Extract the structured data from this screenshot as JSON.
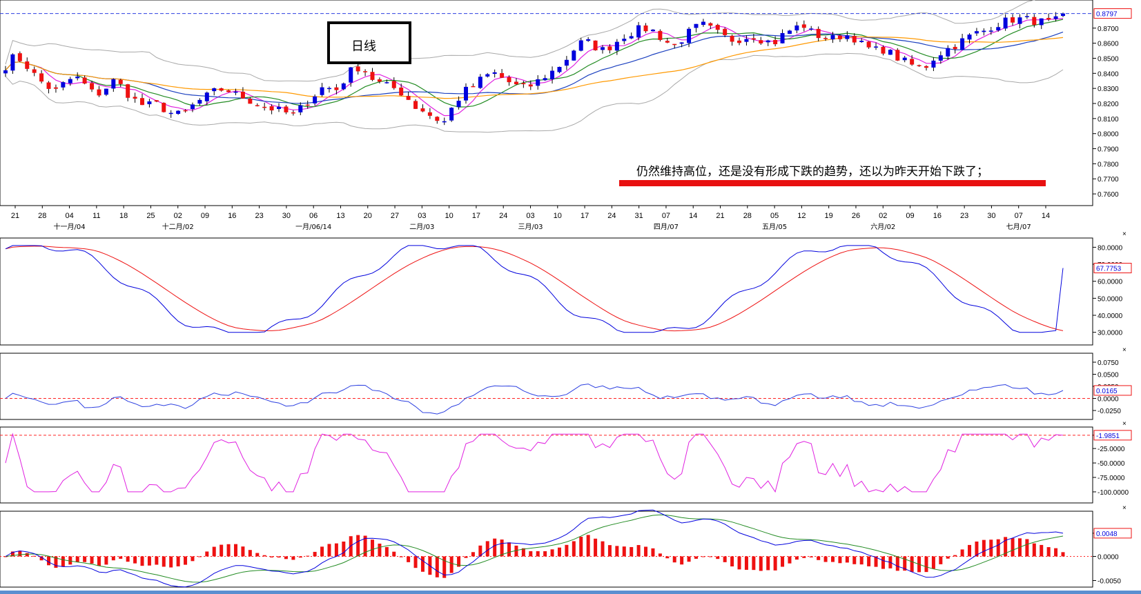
{
  "chart_data": {
    "type": "candlestick",
    "title_box": "日线",
    "annotation": "仍然维持高位，还是没有形成下跌的趋势，还以为昨天开始下跌了；",
    "date_ticks": [
      "21",
      "28",
      "04",
      "11",
      "18",
      "25",
      "02",
      "09",
      "16",
      "23",
      "30",
      "06",
      "13",
      "20",
      "27",
      "03",
      "10",
      "17",
      "24",
      "03",
      "10",
      "17",
      "24",
      "31",
      "07",
      "14",
      "21",
      "28",
      "05",
      "12",
      "19",
      "26",
      "02",
      "09",
      "16",
      "23",
      "30",
      "07",
      "14"
    ],
    "month_labels": [
      {
        "at": 2,
        "text": "十一月/04"
      },
      {
        "at": 6,
        "text": "十二月/02"
      },
      {
        "at": 11,
        "text": "一月/06/14"
      },
      {
        "at": 15,
        "text": "二月/03"
      },
      {
        "at": 19,
        "text": "三月/03"
      },
      {
        "at": 24,
        "text": "四月/07"
      },
      {
        "at": 28,
        "text": "五月/05"
      },
      {
        "at": 32,
        "text": "六月/02"
      },
      {
        "at": 37,
        "text": "七月/07"
      }
    ],
    "price_axis": {
      "ticks": [
        "0.8700",
        "0.8600",
        "0.8500",
        "0.8400",
        "0.8300",
        "0.8200",
        "0.8100",
        "0.8000",
        "0.7900",
        "0.7800",
        "0.7700",
        "0.7600"
      ],
      "range": [
        0.755,
        0.885
      ],
      "last": "0.8797",
      "last_value": 0.8797
    },
    "close_path": [
      0.845,
      0.852,
      0.846,
      0.838,
      0.832,
      0.828,
      0.834,
      0.838,
      0.832,
      0.825,
      0.83,
      0.836,
      0.828,
      0.822,
      0.818,
      0.82,
      0.816,
      0.812,
      0.814,
      0.82,
      0.824,
      0.828,
      0.83,
      0.826,
      0.824,
      0.82,
      0.818,
      0.816,
      0.814,
      0.812,
      0.82,
      0.826,
      0.832,
      0.828,
      0.836,
      0.845,
      0.842,
      0.835,
      0.832,
      0.83,
      0.826,
      0.818,
      0.815,
      0.81,
      0.808,
      0.82,
      0.828,
      0.832,
      0.838,
      0.84,
      0.836,
      0.832,
      0.83,
      0.833,
      0.838,
      0.842,
      0.848,
      0.856,
      0.862,
      0.858,
      0.855,
      0.86,
      0.865,
      0.868,
      0.87,
      0.868,
      0.862,
      0.858,
      0.864,
      0.87,
      0.872,
      0.868,
      0.864,
      0.862,
      0.864,
      0.865,
      0.862,
      0.86,
      0.866,
      0.87,
      0.872,
      0.866,
      0.864,
      0.863,
      0.866,
      0.864,
      0.858,
      0.855,
      0.856,
      0.852,
      0.848,
      0.845,
      0.843,
      0.85,
      0.855,
      0.858,
      0.862,
      0.866,
      0.868,
      0.872,
      0.874,
      0.876,
      0.876,
      0.875,
      0.874,
      0.873,
      0.8797
    ],
    "panels": [
      {
        "name": "kdj",
        "ticks": [
          "80.0000",
          "70.0000",
          "60.0000",
          "50.0000",
          "40.0000",
          "30.0000"
        ],
        "range": [
          25,
          83
        ],
        "last": "67.7753",
        "last_value": 67.7753
      },
      {
        "name": "momentum",
        "ticks": [
          "0.0750",
          "0.0500",
          "0.0250",
          "0.0000",
          "-0.0250"
        ],
        "range": [
          -0.035,
          0.085
        ],
        "last": "0.0165",
        "last_value": 0.0165,
        "ref_value": 0.0
      },
      {
        "name": "williams",
        "ticks": [
          "-1.9851",
          "-25.0000",
          "-50.0000",
          "-75.0000",
          "-100.0000"
        ],
        "range": [
          -112,
          5
        ],
        "last": "-1.9851",
        "last_value": -1.9851
      },
      {
        "name": "macd",
        "ticks": [
          "0.0048",
          "0.0000",
          "-0.0050"
        ],
        "range": [
          -0.0055,
          0.0085
        ],
        "last": "0.0048",
        "last_value": 0.0048
      }
    ],
    "colors": {
      "up": "#0000dd",
      "down": "#ee1111",
      "ma_orange": "#ff9900",
      "ma_blue": "#1a3fbf",
      "ma_green": "#228b22",
      "ma_magenta": "#e020e0",
      "boll": "#a8a8a8",
      "annotation_bar": "#e81010",
      "ref_line_blue": "#2b3fe0",
      "ref_line_red": "#ff2020"
    }
  }
}
